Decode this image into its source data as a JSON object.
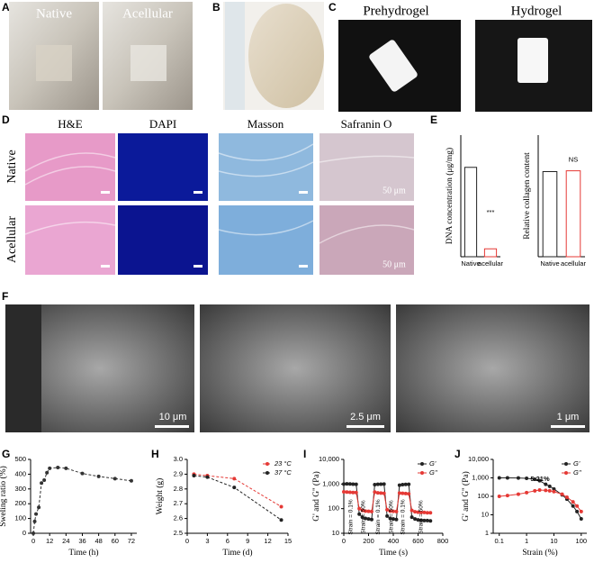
{
  "panel_letters": [
    "A",
    "B",
    "C",
    "D",
    "E",
    "F",
    "G",
    "H",
    "I",
    "J"
  ],
  "photos_a": [
    "Native",
    "Acellular"
  ],
  "photos_c": [
    "Prehydrogel",
    "Hydrogel"
  ],
  "staining": {
    "columns": [
      "H&E",
      "DAPI",
      "Masson",
      "Safranin O"
    ],
    "rows": [
      "Native",
      "Acellular"
    ],
    "scale": [
      "50 μm",
      "50 μm"
    ]
  },
  "sem_scales": [
    "10 μm",
    "2.5 μm",
    "1 μm"
  ],
  "chart_data": [
    {
      "type": "bar",
      "ylabel": "DNA concentration (μg/mg)",
      "categories": [
        "Native",
        "acellular"
      ],
      "values": [
        1.47,
        0.13
      ],
      "colors": [
        "#222222",
        "#e53935"
      ],
      "annotations": [
        "***"
      ],
      "ylim": [
        0,
        2
      ]
    },
    {
      "type": "bar",
      "ylabel": "Relative collagen content",
      "categories": [
        "Native",
        "acellular"
      ],
      "values": [
        1.05,
        1.06
      ],
      "colors": [
        "#222222",
        "#e53935"
      ],
      "annotations": [
        "NS"
      ],
      "ylim": [
        0,
        1.5
      ]
    },
    {
      "type": "line",
      "xlabel": "Time (h)",
      "ylabel": "Sweling ratio (%)",
      "dashed": true,
      "x": [
        0,
        1,
        2,
        4,
        6,
        8,
        10,
        12,
        18,
        24,
        36,
        48,
        60,
        72
      ],
      "series": [
        {
          "color": "#333333",
          "values": [
            0,
            80,
            130,
            175,
            340,
            360,
            410,
            440,
            445,
            440,
            405,
            385,
            370,
            355
          ]
        }
      ],
      "xlim": [
        -2,
        76
      ],
      "xticks": [
        0,
        12,
        24,
        36,
        48,
        60,
        72
      ],
      "ylim": [
        0,
        500
      ],
      "yticks": [
        0,
        100,
        200,
        300,
        400,
        500
      ]
    },
    {
      "type": "line",
      "xlabel": "Time (d)",
      "ylabel": "Weight (g)",
      "dashed": true,
      "legend": "upper right",
      "x": [
        1,
        3,
        7,
        14
      ],
      "series": [
        {
          "name": "23 °C",
          "color": "#e53935",
          "values": [
            2.9,
            2.89,
            2.87,
            2.68
          ]
        },
        {
          "name": "37 °C",
          "color": "#222222",
          "values": [
            2.89,
            2.88,
            2.81,
            2.59
          ]
        }
      ],
      "xlim": [
        0,
        15
      ],
      "xticks": [
        0,
        3,
        6,
        9,
        12,
        15
      ],
      "ylim": [
        2.5,
        3.0
      ],
      "yticks": [
        2.5,
        2.6,
        2.7,
        2.8,
        2.9,
        {
          "value": 3,
          "label": "3.0"
        }
      ]
    },
    {
      "type": "line",
      "xlabel": "Time (s)",
      "ylabel": "G' and G'' (Pa)",
      "ylog": true,
      "legend": "upper right",
      "x": [
        0,
        25,
        50,
        75,
        100,
        125,
        150,
        175,
        200,
        225,
        250,
        275,
        300,
        325,
        350,
        375,
        400,
        425,
        450,
        475,
        500,
        525,
        550,
        575,
        600,
        625,
        650,
        675,
        700
      ],
      "series": [
        {
          "name": "G'",
          "color": "#222222",
          "values": [
            1000,
            1020,
            1010,
            990,
            980,
            60,
            45,
            40,
            38,
            36,
            950,
            980,
            990,
            1000,
            50,
            40,
            38,
            36,
            900,
            950,
            970,
            980,
            45,
            38,
            35,
            34,
            33,
            33,
            32
          ]
        },
        {
          "name": "G''",
          "color": "#e53935",
          "values": [
            480,
            470,
            460,
            450,
            450,
            100,
            85,
            80,
            78,
            76,
            470,
            440,
            430,
            420,
            90,
            80,
            78,
            76,
            430,
            420,
            410,
            400,
            85,
            75,
            72,
            70,
            70,
            68,
            68
          ]
        }
      ],
      "annotations": [
        "Strain = 0.1%",
        "Strain = 50%",
        "Strain = 0.1%",
        "Strain = 50%",
        "Strain = 0.1%",
        "Strain = 50%"
      ],
      "xlim": [
        0,
        800
      ],
      "xticks": [
        0,
        200,
        400,
        600,
        800
      ],
      "ylim": [
        10,
        10000
      ],
      "yticks": [
        10,
        100,
        {
          "value": 1000,
          "label": "1,000"
        },
        {
          "value": 10000,
          "label": "10,000"
        }
      ]
    },
    {
      "type": "line",
      "xlabel": "Strain (%)",
      "ylabel": "G' and G'' (Pa)",
      "xlog": true,
      "ylog": true,
      "legend": "upper right",
      "x": [
        0.1,
        0.2,
        0.5,
        1,
        2,
        3,
        5,
        7,
        10,
        20,
        30,
        50,
        70,
        100
      ],
      "series": [
        {
          "name": "G'",
          "color": "#222222",
          "values": [
            1000,
            1000,
            980,
            950,
            850,
            700,
            450,
            350,
            250,
            120,
            70,
            30,
            15,
            6
          ]
        },
        {
          "name": "G''",
          "color": "#e53935",
          "values": [
            100,
            110,
            130,
            160,
            200,
            220,
            210,
            200,
            180,
            130,
            90,
            50,
            30,
            15
          ]
        }
      ],
      "annotations": [
        "5.21%"
      ],
      "xlim": [
        0.06,
        160
      ],
      "xticks": [
        0.1,
        1,
        10,
        100
      ],
      "ylim": [
        1,
        10000
      ],
      "yticks": [
        1,
        10,
        100,
        {
          "value": 1000,
          "label": "1,000"
        },
        {
          "value": 10000,
          "label": "10,000"
        }
      ]
    }
  ]
}
